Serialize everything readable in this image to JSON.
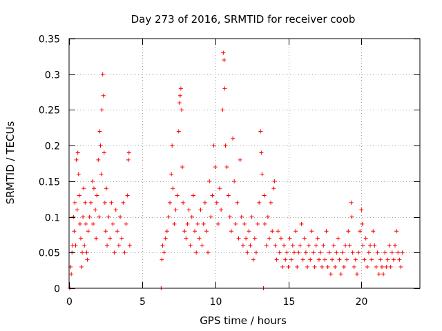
{
  "chart_data": {
    "type": "scatter",
    "title": "Day 273 of 2016, SRMTID for receiver coob",
    "xlabel": "GPS time / hours",
    "ylabel": "SRMTID / TECUs",
    "xlim": [
      0,
      24
    ],
    "ylim": [
      0,
      0.35
    ],
    "x_ticks": [
      0,
      5,
      10,
      15,
      20
    ],
    "x_tick_labels": [
      "0",
      "5",
      "10",
      "15",
      "20"
    ],
    "y_ticks": [
      0,
      0.05,
      0.1,
      0.15,
      0.2,
      0.25,
      0.3,
      0.35
    ],
    "y_tick_labels": [
      "0",
      "0.05",
      "0.1",
      "0.15",
      "0.2",
      "0.25",
      "0.3",
      "0.35"
    ],
    "grid": true,
    "marker": "plus",
    "color": "#ff0000",
    "series": [
      {
        "name": "SRMTID",
        "points": [
          [
            0.05,
            0.0
          ],
          [
            0.1,
            0.03
          ],
          [
            0.15,
            0.02
          ],
          [
            0.2,
            0.05
          ],
          [
            0.25,
            0.06
          ],
          [
            0.3,
            0.1
          ],
          [
            0.35,
            0.08
          ],
          [
            0.4,
            0.12
          ],
          [
            0.45,
            0.06
          ],
          [
            0.5,
            0.18
          ],
          [
            0.55,
            0.11
          ],
          [
            0.6,
            0.19
          ],
          [
            0.65,
            0.16
          ],
          [
            0.7,
            0.13
          ],
          [
            0.75,
            0.09
          ],
          [
            0.8,
            0.07
          ],
          [
            0.85,
            0.03
          ],
          [
            0.9,
            0.05
          ],
          [
            0.95,
            0.1
          ],
          [
            1.0,
            0.14
          ],
          [
            1.05,
            0.06
          ],
          [
            1.1,
            0.12
          ],
          [
            1.15,
            0.09
          ],
          [
            1.2,
            0.05
          ],
          [
            1.25,
            0.04
          ],
          [
            1.3,
            0.08
          ],
          [
            1.4,
            0.1
          ],
          [
            1.5,
            0.12
          ],
          [
            1.6,
            0.15
          ],
          [
            1.65,
            0.09
          ],
          [
            1.7,
            0.14
          ],
          [
            1.8,
            0.11
          ],
          [
            1.85,
            0.07
          ],
          [
            1.9,
            0.13
          ],
          [
            2.0,
            0.18
          ],
          [
            2.05,
            0.1
          ],
          [
            2.1,
            0.22
          ],
          [
            2.15,
            0.2
          ],
          [
            2.2,
            0.16
          ],
          [
            2.25,
            0.25
          ],
          [
            2.3,
            0.3
          ],
          [
            2.35,
            0.27
          ],
          [
            2.4,
            0.19
          ],
          [
            2.45,
            0.12
          ],
          [
            2.5,
            0.08
          ],
          [
            2.55,
            0.14
          ],
          [
            2.6,
            0.06
          ],
          [
            2.7,
            0.1
          ],
          [
            2.8,
            0.07
          ],
          [
            2.9,
            0.12
          ],
          [
            3.0,
            0.09
          ],
          [
            3.1,
            0.05
          ],
          [
            3.2,
            0.11
          ],
          [
            3.3,
            0.08
          ],
          [
            3.4,
            0.06
          ],
          [
            3.5,
            0.1
          ],
          [
            3.6,
            0.07
          ],
          [
            3.7,
            0.12
          ],
          [
            3.8,
            0.05
          ],
          [
            3.9,
            0.09
          ],
          [
            4.0,
            0.13
          ],
          [
            4.05,
            0.18
          ],
          [
            4.1,
            0.19
          ],
          [
            4.15,
            0.06
          ],
          [
            6.3,
            0.0
          ],
          [
            6.35,
            0.04
          ],
          [
            6.4,
            0.06
          ],
          [
            6.5,
            0.05
          ],
          [
            6.6,
            0.07
          ],
          [
            6.7,
            0.08
          ],
          [
            6.8,
            0.1
          ],
          [
            6.9,
            0.12
          ],
          [
            7.0,
            0.16
          ],
          [
            7.05,
            0.2
          ],
          [
            7.1,
            0.14
          ],
          [
            7.2,
            0.09
          ],
          [
            7.3,
            0.11
          ],
          [
            7.4,
            0.13
          ],
          [
            7.5,
            0.22
          ],
          [
            7.55,
            0.26
          ],
          [
            7.6,
            0.27
          ],
          [
            7.65,
            0.28
          ],
          [
            7.7,
            0.25
          ],
          [
            7.75,
            0.17
          ],
          [
            7.8,
            0.12
          ],
          [
            7.9,
            0.08
          ],
          [
            8.0,
            0.07
          ],
          [
            8.1,
            0.09
          ],
          [
            8.2,
            0.11
          ],
          [
            8.3,
            0.06
          ],
          [
            8.4,
            0.1
          ],
          [
            8.5,
            0.13
          ],
          [
            8.6,
            0.08
          ],
          [
            8.7,
            0.05
          ],
          [
            8.8,
            0.09
          ],
          [
            8.9,
            0.07
          ],
          [
            9.0,
            0.11
          ],
          [
            9.1,
            0.06
          ],
          [
            9.2,
            0.09
          ],
          [
            9.3,
            0.12
          ],
          [
            9.4,
            0.08
          ],
          [
            9.5,
            0.05
          ],
          [
            9.6,
            0.15
          ],
          [
            9.7,
            0.1
          ],
          [
            9.8,
            0.13
          ],
          [
            9.9,
            0.2
          ],
          [
            10.0,
            0.17
          ],
          [
            10.1,
            0.12
          ],
          [
            10.2,
            0.09
          ],
          [
            10.3,
            0.14
          ],
          [
            10.4,
            0.11
          ],
          [
            10.5,
            0.25
          ],
          [
            10.55,
            0.33
          ],
          [
            10.6,
            0.32
          ],
          [
            10.65,
            0.28
          ],
          [
            10.7,
            0.2
          ],
          [
            10.8,
            0.17
          ],
          [
            10.9,
            0.13
          ],
          [
            11.0,
            0.1
          ],
          [
            11.1,
            0.08
          ],
          [
            11.2,
            0.21
          ],
          [
            11.3,
            0.15
          ],
          [
            11.4,
            0.09
          ],
          [
            11.5,
            0.12
          ],
          [
            11.6,
            0.07
          ],
          [
            11.7,
            0.18
          ],
          [
            11.8,
            0.1
          ],
          [
            11.9,
            0.06
          ],
          [
            12.0,
            0.09
          ],
          [
            12.1,
            0.07
          ],
          [
            12.2,
            0.05
          ],
          [
            12.3,
            0.08
          ],
          [
            12.4,
            0.06
          ],
          [
            12.5,
            0.1
          ],
          [
            12.6,
            0.04
          ],
          [
            12.7,
            0.07
          ],
          [
            12.8,
            0.05
          ],
          [
            12.9,
            0.09
          ],
          [
            13.0,
            0.12
          ],
          [
            13.1,
            0.22
          ],
          [
            13.15,
            0.19
          ],
          [
            13.2,
            0.16
          ],
          [
            13.3,
            0.0
          ],
          [
            13.35,
            0.13
          ],
          [
            13.4,
            0.09
          ],
          [
            13.5,
            0.06
          ],
          [
            13.6,
            0.1
          ],
          [
            13.7,
            0.07
          ],
          [
            13.8,
            0.12
          ],
          [
            13.9,
            0.08
          ],
          [
            14.0,
            0.14
          ],
          [
            14.05,
            0.15
          ],
          [
            14.1,
            0.06
          ],
          [
            14.2,
            0.04
          ],
          [
            14.3,
            0.08
          ],
          [
            14.4,
            0.05
          ],
          [
            14.5,
            0.07
          ],
          [
            14.6,
            0.03
          ],
          [
            14.7,
            0.06
          ],
          [
            14.8,
            0.04
          ],
          [
            14.9,
            0.05
          ],
          [
            15.0,
            0.03
          ],
          [
            15.1,
            0.07
          ],
          [
            15.2,
            0.04
          ],
          [
            15.3,
            0.06
          ],
          [
            15.4,
            0.05
          ],
          [
            15.5,
            0.08
          ],
          [
            15.6,
            0.03
          ],
          [
            15.7,
            0.05
          ],
          [
            15.8,
            0.06
          ],
          [
            15.9,
            0.09
          ],
          [
            16.0,
            0.04
          ],
          [
            16.1,
            0.07
          ],
          [
            16.2,
            0.05
          ],
          [
            16.3,
            0.03
          ],
          [
            16.4,
            0.06
          ],
          [
            16.5,
            0.04
          ],
          [
            16.6,
            0.08
          ],
          [
            16.7,
            0.05
          ],
          [
            16.8,
            0.03
          ],
          [
            16.9,
            0.06
          ],
          [
            17.0,
            0.07
          ],
          [
            17.1,
            0.04
          ],
          [
            17.2,
            0.05
          ],
          [
            17.3,
            0.03
          ],
          [
            17.4,
            0.06
          ],
          [
            17.5,
            0.04
          ],
          [
            17.6,
            0.08
          ],
          [
            17.7,
            0.03
          ],
          [
            17.8,
            0.05
          ],
          [
            17.9,
            0.02
          ],
          [
            18.0,
            0.04
          ],
          [
            18.1,
            0.06
          ],
          [
            18.2,
            0.03
          ],
          [
            18.3,
            0.05
          ],
          [
            18.4,
            0.07
          ],
          [
            18.5,
            0.04
          ],
          [
            18.6,
            0.02
          ],
          [
            18.7,
            0.05
          ],
          [
            18.8,
            0.03
          ],
          [
            18.9,
            0.06
          ],
          [
            19.0,
            0.04
          ],
          [
            19.1,
            0.08
          ],
          [
            19.2,
            0.06
          ],
          [
            19.3,
            0.12
          ],
          [
            19.35,
            0.1
          ],
          [
            19.4,
            0.05
          ],
          [
            19.5,
            0.03
          ],
          [
            19.6,
            0.04
          ],
          [
            19.7,
            0.02
          ],
          [
            19.8,
            0.05
          ],
          [
            19.9,
            0.08
          ],
          [
            20.0,
            0.11
          ],
          [
            20.05,
            0.09
          ],
          [
            20.1,
            0.06
          ],
          [
            20.2,
            0.04
          ],
          [
            20.3,
            0.07
          ],
          [
            20.4,
            0.03
          ],
          [
            20.5,
            0.05
          ],
          [
            20.6,
            0.06
          ],
          [
            20.7,
            0.04
          ],
          [
            20.8,
            0.08
          ],
          [
            20.9,
            0.06
          ],
          [
            21.0,
            0.03
          ],
          [
            21.1,
            0.05
          ],
          [
            21.2,
            0.02
          ],
          [
            21.3,
            0.04
          ],
          [
            21.4,
            0.03
          ],
          [
            21.5,
            0.02
          ],
          [
            21.6,
            0.05
          ],
          [
            21.7,
            0.03
          ],
          [
            21.8,
            0.04
          ],
          [
            21.9,
            0.06
          ],
          [
            22.0,
            0.03
          ],
          [
            22.1,
            0.05
          ],
          [
            22.2,
            0.04
          ],
          [
            22.3,
            0.06
          ],
          [
            22.4,
            0.08
          ],
          [
            22.5,
            0.05
          ],
          [
            22.6,
            0.04
          ],
          [
            22.7,
            0.03
          ],
          [
            22.8,
            0.05
          ]
        ]
      }
    ]
  }
}
